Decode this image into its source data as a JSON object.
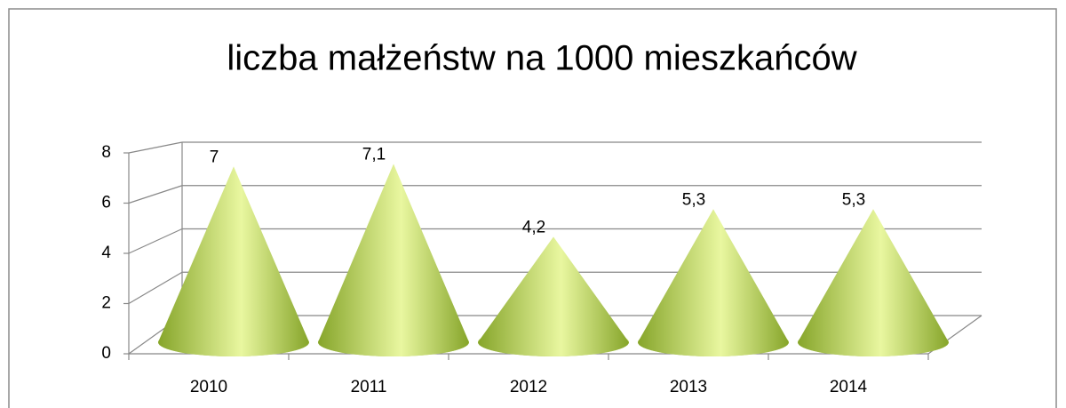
{
  "chart_data": {
    "type": "cone",
    "title": "liczba małżeństw na 1000 mieszkańców",
    "categories": [
      "2010",
      "2011",
      "2012",
      "2013",
      "2014"
    ],
    "values": [
      7,
      7.1,
      4.2,
      5.3,
      5.3
    ],
    "value_labels": [
      "7",
      "7,1",
      "4,2",
      "5,3",
      "5,3"
    ],
    "color": "#9bbb3c",
    "ylim": [
      0,
      8
    ],
    "yticks": [
      0,
      2,
      4,
      6,
      8
    ],
    "grid": true
  }
}
